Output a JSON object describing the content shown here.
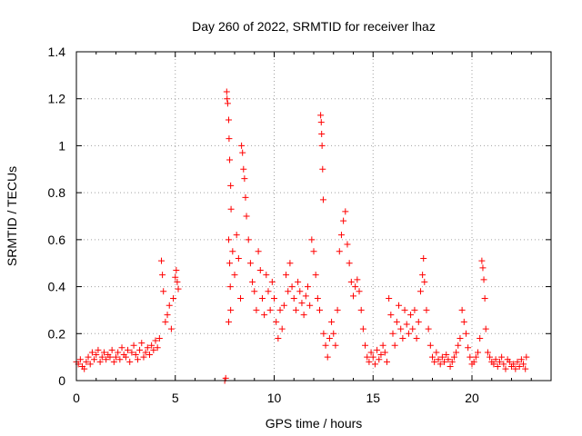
{
  "chart_data": {
    "type": "scatter",
    "title": "Day 260 of 2022, SRMTID for receiver lhaz",
    "xlabel": "GPS time / hours",
    "ylabel": "SRMTID / TECUs",
    "xlim": [
      0,
      24
    ],
    "ylim": [
      0,
      1.4
    ],
    "xticks": [
      0,
      5,
      10,
      15,
      20
    ],
    "xtick_labels": [
      "0",
      "5",
      "10",
      "15",
      "20"
    ],
    "yticks": [
      0,
      0.2,
      0.4,
      0.6,
      0.8,
      1,
      1.2,
      1.4
    ],
    "ytick_labels": [
      "0",
      "0.2",
      "0.4",
      "0.6",
      "0.8",
      "1",
      "1.2",
      "1.4"
    ],
    "grid": true,
    "marker": "+",
    "color": "#ff0000",
    "series": [
      {
        "name": "SRMTID",
        "points": [
          [
            0.0,
            0.08
          ],
          [
            0.1,
            0.07
          ],
          [
            0.2,
            0.09
          ],
          [
            0.3,
            0.06
          ],
          [
            0.4,
            0.05
          ],
          [
            0.5,
            0.08
          ],
          [
            0.6,
            0.1
          ],
          [
            0.7,
            0.07
          ],
          [
            0.8,
            0.12
          ],
          [
            0.9,
            0.09
          ],
          [
            1.0,
            0.11
          ],
          [
            1.1,
            0.13
          ],
          [
            1.2,
            0.08
          ],
          [
            1.3,
            0.1
          ],
          [
            1.4,
            0.12
          ],
          [
            1.5,
            0.09
          ],
          [
            1.6,
            0.11
          ],
          [
            1.7,
            0.1
          ],
          [
            1.8,
            0.13
          ],
          [
            1.9,
            0.08
          ],
          [
            2.0,
            0.1
          ],
          [
            2.1,
            0.12
          ],
          [
            2.2,
            0.09
          ],
          [
            2.3,
            0.14
          ],
          [
            2.4,
            0.11
          ],
          [
            2.5,
            0.1
          ],
          [
            2.6,
            0.13
          ],
          [
            2.7,
            0.08
          ],
          [
            2.8,
            0.12
          ],
          [
            2.9,
            0.15
          ],
          [
            3.0,
            0.11
          ],
          [
            3.1,
            0.09
          ],
          [
            3.2,
            0.13
          ],
          [
            3.3,
            0.16
          ],
          [
            3.4,
            0.1
          ],
          [
            3.5,
            0.12
          ],
          [
            3.6,
            0.14
          ],
          [
            3.7,
            0.11
          ],
          [
            3.8,
            0.15
          ],
          [
            3.9,
            0.13
          ],
          [
            4.0,
            0.17
          ],
          [
            4.1,
            0.14
          ],
          [
            4.2,
            0.18
          ],
          [
            4.3,
            0.51
          ],
          [
            4.35,
            0.45
          ],
          [
            4.4,
            0.38
          ],
          [
            4.5,
            0.25
          ],
          [
            4.6,
            0.28
          ],
          [
            4.7,
            0.32
          ],
          [
            4.8,
            0.22
          ],
          [
            4.9,
            0.35
          ],
          [
            5.0,
            0.44
          ],
          [
            5.05,
            0.47
          ],
          [
            5.1,
            0.42
          ],
          [
            5.15,
            0.39
          ],
          [
            7.5,
            0.0
          ],
          [
            7.55,
            0.01
          ],
          [
            7.6,
            1.23
          ],
          [
            7.62,
            1.2
          ],
          [
            7.65,
            1.18
          ],
          [
            7.7,
            1.11
          ],
          [
            7.72,
            1.03
          ],
          [
            7.75,
            0.94
          ],
          [
            7.8,
            0.83
          ],
          [
            7.82,
            0.73
          ],
          [
            7.7,
            0.6
          ],
          [
            7.75,
            0.5
          ],
          [
            7.78,
            0.4
          ],
          [
            7.8,
            0.3
          ],
          [
            7.7,
            0.25
          ],
          [
            7.9,
            0.55
          ],
          [
            8.0,
            0.45
          ],
          [
            8.1,
            0.62
          ],
          [
            8.2,
            0.52
          ],
          [
            8.3,
            0.35
          ],
          [
            8.35,
            1.0
          ],
          [
            8.4,
            0.97
          ],
          [
            8.45,
            0.9
          ],
          [
            8.5,
            0.86
          ],
          [
            8.55,
            0.78
          ],
          [
            8.6,
            0.7
          ],
          [
            8.7,
            0.6
          ],
          [
            8.8,
            0.5
          ],
          [
            8.9,
            0.42
          ],
          [
            9.0,
            0.38
          ],
          [
            9.1,
            0.3
          ],
          [
            9.2,
            0.55
          ],
          [
            9.3,
            0.47
          ],
          [
            9.4,
            0.35
          ],
          [
            9.5,
            0.28
          ],
          [
            9.6,
            0.45
          ],
          [
            9.7,
            0.38
          ],
          [
            9.8,
            0.3
          ],
          [
            9.9,
            0.42
          ],
          [
            10.0,
            0.35
          ],
          [
            10.1,
            0.25
          ],
          [
            10.2,
            0.18
          ],
          [
            10.3,
            0.3
          ],
          [
            10.4,
            0.22
          ],
          [
            10.5,
            0.32
          ],
          [
            10.6,
            0.45
          ],
          [
            10.7,
            0.38
          ],
          [
            10.8,
            0.5
          ],
          [
            10.9,
            0.4
          ],
          [
            11.0,
            0.35
          ],
          [
            11.1,
            0.3
          ],
          [
            11.2,
            0.42
          ],
          [
            11.3,
            0.38
          ],
          [
            11.4,
            0.33
          ],
          [
            11.5,
            0.28
          ],
          [
            11.6,
            0.36
          ],
          [
            11.7,
            0.4
          ],
          [
            11.8,
            0.32
          ],
          [
            11.9,
            0.6
          ],
          [
            12.0,
            0.55
          ],
          [
            12.1,
            0.45
          ],
          [
            12.2,
            0.35
          ],
          [
            12.3,
            0.3
          ],
          [
            12.35,
            1.13
          ],
          [
            12.38,
            1.1
          ],
          [
            12.4,
            1.05
          ],
          [
            12.42,
            1.0
          ],
          [
            12.45,
            0.9
          ],
          [
            12.48,
            0.77
          ],
          [
            12.5,
            0.2
          ],
          [
            12.6,
            0.15
          ],
          [
            12.7,
            0.1
          ],
          [
            12.8,
            0.18
          ],
          [
            12.9,
            0.25
          ],
          [
            13.0,
            0.2
          ],
          [
            13.1,
            0.15
          ],
          [
            13.2,
            0.3
          ],
          [
            13.3,
            0.55
          ],
          [
            13.4,
            0.62
          ],
          [
            13.5,
            0.68
          ],
          [
            13.6,
            0.72
          ],
          [
            13.7,
            0.58
          ],
          [
            13.8,
            0.5
          ],
          [
            13.9,
            0.42
          ],
          [
            14.0,
            0.36
          ],
          [
            14.1,
            0.4
          ],
          [
            14.2,
            0.43
          ],
          [
            14.3,
            0.38
          ],
          [
            14.4,
            0.3
          ],
          [
            14.5,
            0.22
          ],
          [
            14.6,
            0.15
          ],
          [
            14.7,
            0.1
          ],
          [
            14.8,
            0.08
          ],
          [
            14.9,
            0.12
          ],
          [
            15.0,
            0.1
          ],
          [
            15.1,
            0.07
          ],
          [
            15.2,
            0.13
          ],
          [
            15.3,
            0.09
          ],
          [
            15.4,
            0.11
          ],
          [
            15.5,
            0.15
          ],
          [
            15.6,
            0.12
          ],
          [
            15.7,
            0.08
          ],
          [
            15.8,
            0.35
          ],
          [
            15.9,
            0.28
          ],
          [
            16.0,
            0.2
          ],
          [
            16.1,
            0.15
          ],
          [
            16.2,
            0.25
          ],
          [
            16.3,
            0.32
          ],
          [
            16.4,
            0.22
          ],
          [
            16.5,
            0.18
          ],
          [
            16.6,
            0.3
          ],
          [
            16.7,
            0.24
          ],
          [
            16.8,
            0.2
          ],
          [
            16.9,
            0.28
          ],
          [
            17.0,
            0.22
          ],
          [
            17.1,
            0.3
          ],
          [
            17.2,
            0.18
          ],
          [
            17.3,
            0.25
          ],
          [
            17.4,
            0.38
          ],
          [
            17.5,
            0.45
          ],
          [
            17.55,
            0.52
          ],
          [
            17.6,
            0.42
          ],
          [
            17.7,
            0.3
          ],
          [
            17.8,
            0.22
          ],
          [
            17.9,
            0.15
          ],
          [
            18.0,
            0.1
          ],
          [
            18.1,
            0.08
          ],
          [
            18.2,
            0.12
          ],
          [
            18.3,
            0.09
          ],
          [
            18.4,
            0.07
          ],
          [
            18.5,
            0.1
          ],
          [
            18.6,
            0.08
          ],
          [
            18.7,
            0.11
          ],
          [
            18.8,
            0.09
          ],
          [
            18.9,
            0.06
          ],
          [
            19.0,
            0.08
          ],
          [
            19.1,
            0.1
          ],
          [
            19.2,
            0.12
          ],
          [
            19.3,
            0.15
          ],
          [
            19.4,
            0.18
          ],
          [
            19.5,
            0.3
          ],
          [
            19.6,
            0.25
          ],
          [
            19.7,
            0.2
          ],
          [
            19.8,
            0.14
          ],
          [
            19.9,
            0.1
          ],
          [
            20.0,
            0.07
          ],
          [
            20.1,
            0.08
          ],
          [
            20.2,
            0.1
          ],
          [
            20.3,
            0.12
          ],
          [
            20.4,
            0.18
          ],
          [
            20.5,
            0.51
          ],
          [
            20.55,
            0.48
          ],
          [
            20.6,
            0.43
          ],
          [
            20.65,
            0.35
          ],
          [
            20.7,
            0.22
          ],
          [
            20.8,
            0.12
          ],
          [
            20.9,
            0.1
          ],
          [
            21.0,
            0.08
          ],
          [
            21.1,
            0.07
          ],
          [
            21.2,
            0.09
          ],
          [
            21.3,
            0.06
          ],
          [
            21.4,
            0.08
          ],
          [
            21.5,
            0.1
          ],
          [
            21.6,
            0.07
          ],
          [
            21.7,
            0.05
          ],
          [
            21.8,
            0.09
          ],
          [
            21.9,
            0.08
          ],
          [
            22.0,
            0.06
          ],
          [
            22.1,
            0.07
          ],
          [
            22.2,
            0.05
          ],
          [
            22.3,
            0.08
          ],
          [
            22.4,
            0.06
          ],
          [
            22.5,
            0.09
          ],
          [
            22.6,
            0.07
          ],
          [
            22.7,
            0.05
          ],
          [
            22.75,
            0.1
          ]
        ]
      }
    ]
  }
}
